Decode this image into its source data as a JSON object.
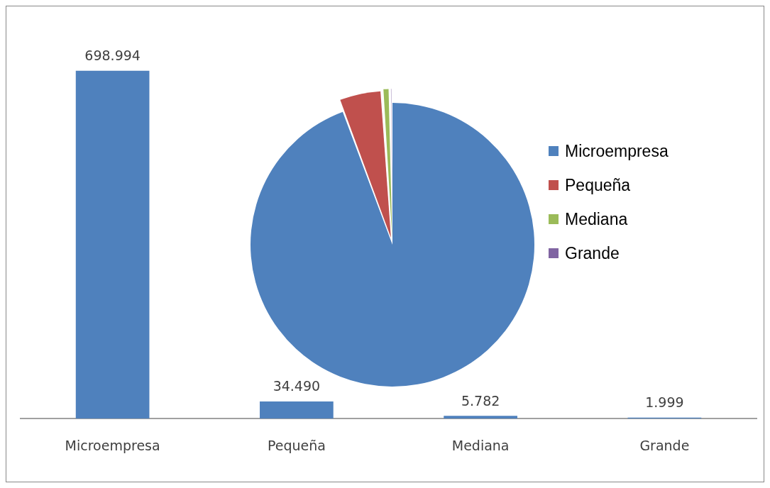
{
  "chart_data": [
    {
      "type": "bar",
      "categories": [
        "Microempresa",
        "Pequeña",
        "Mediana",
        "Grande"
      ],
      "values": [
        698994,
        34490,
        5782,
        1999
      ],
      "value_labels": [
        "698.994",
        "34.490",
        "5.782",
        "1.999"
      ],
      "color": "#4f81bd",
      "tick_labels": "x"
    },
    {
      "type": "pie",
      "categories": [
        "Microempresa",
        "Pequeña",
        "Mediana",
        "Grande"
      ],
      "values": [
        94.3,
        4.65,
        0.78,
        0.27
      ],
      "colors": [
        "#4f81bd",
        "#c0504d",
        "#9bbb59",
        "#8064a2"
      ],
      "legend": "right"
    }
  ]
}
